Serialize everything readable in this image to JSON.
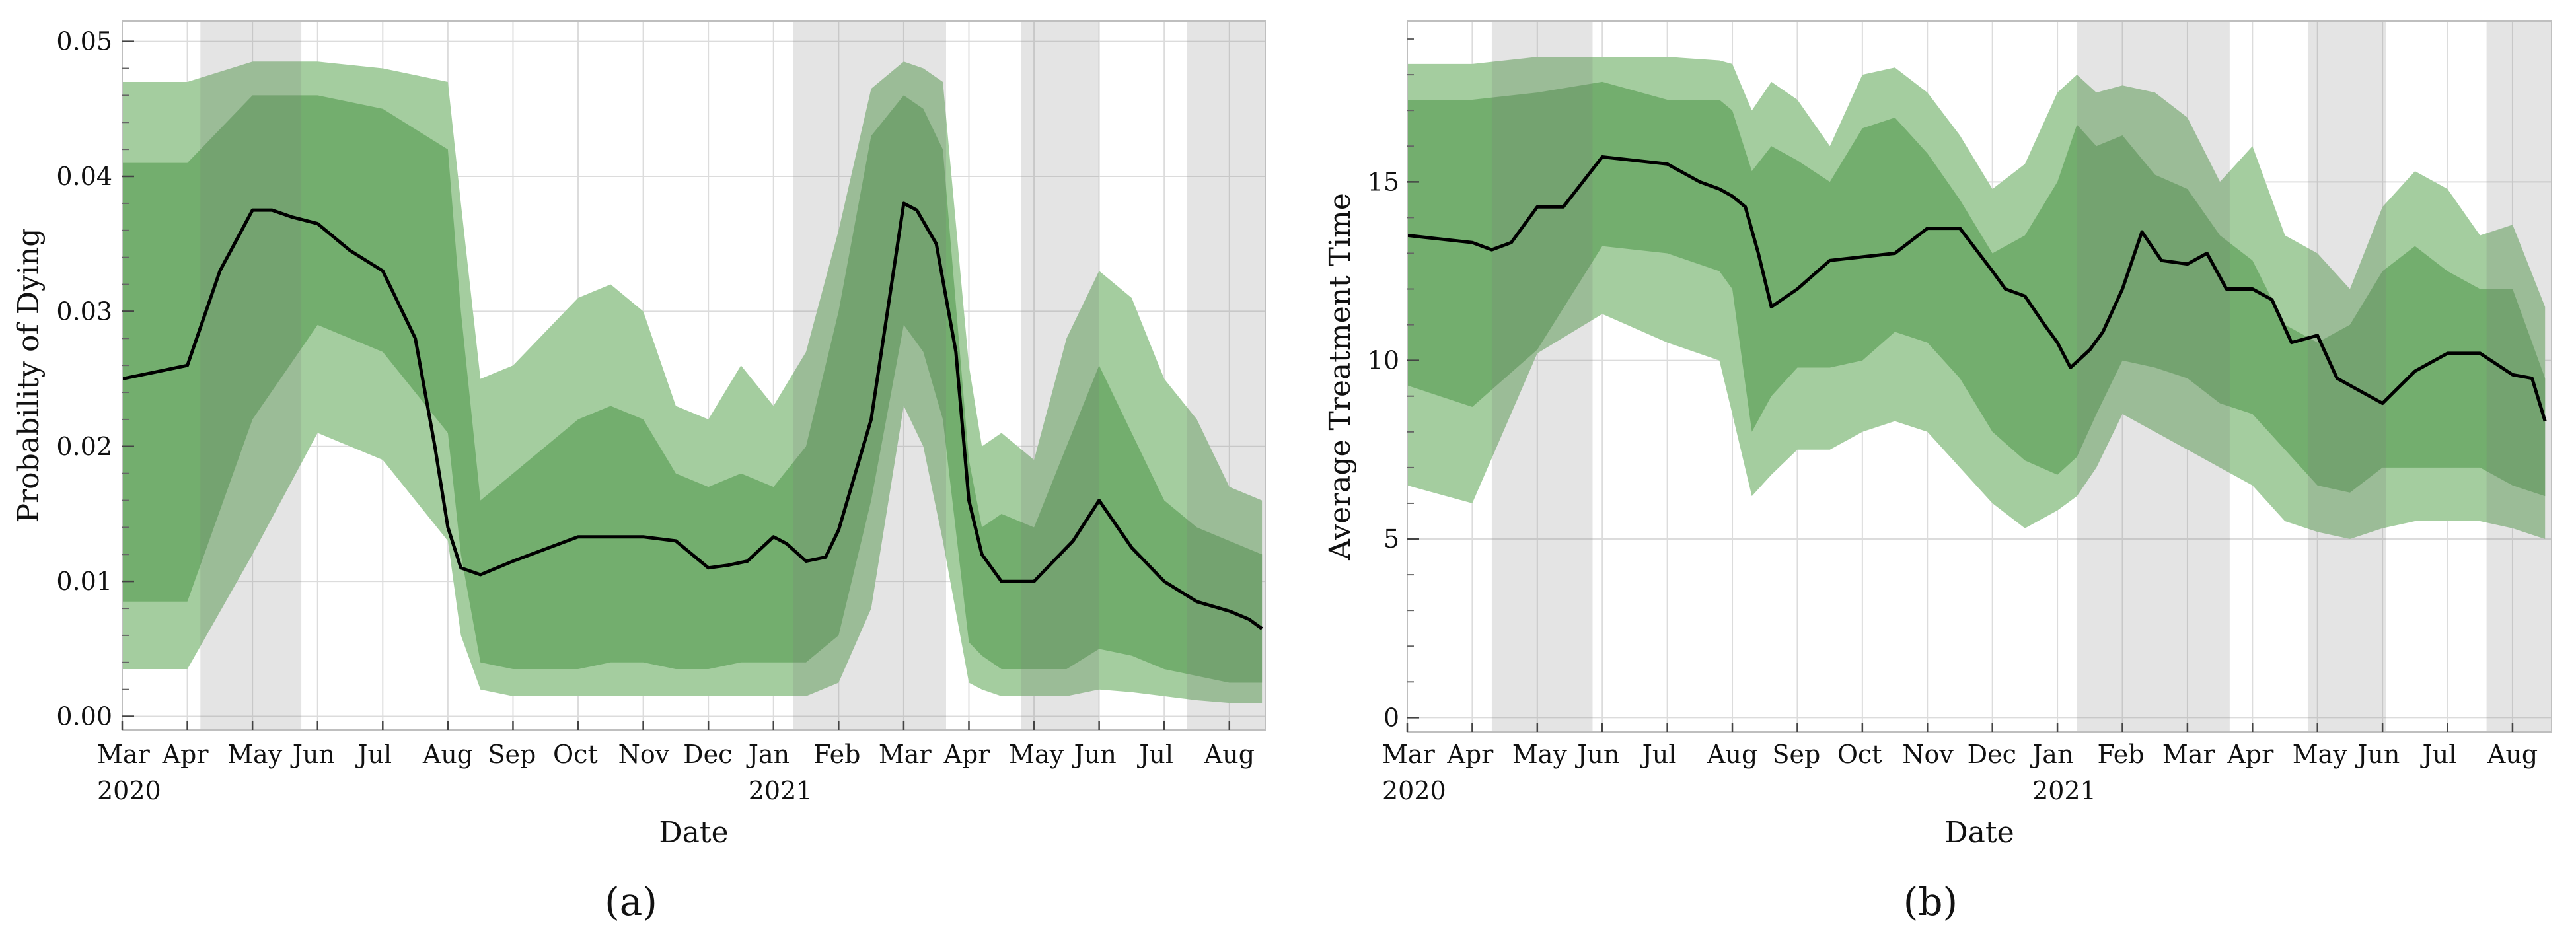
{
  "colors": {
    "shade": "#e5e5e5",
    "band_outer": "#a4cd9f",
    "band_inner": "#73ae6e",
    "median": "#000000",
    "grid": "#dcdcdc",
    "frame": "#bfbfbf"
  },
  "month_labels": [
    "Mar",
    "Apr",
    "May",
    "Jun",
    "Jul",
    "Aug",
    "Sep",
    "Oct",
    "Nov",
    "Dec",
    "Jan",
    "Feb",
    "Mar",
    "Apr",
    "May",
    "Jun",
    "Jul",
    "Aug"
  ],
  "year_labels": [
    "2020",
    "2021"
  ],
  "chart_data": [
    {
      "type": "area",
      "panel_label": "(a)",
      "xlabel": "Date",
      "ylabel": "Probability of Dying",
      "x_range_months": [
        0,
        17.55
      ],
      "ylim": [
        -0.001,
        0.0515
      ],
      "yticks": [
        0.0,
        0.01,
        0.02,
        0.03,
        0.04,
        0.05
      ],
      "ytick_labels": [
        "0.00",
        "0.01",
        "0.02",
        "0.03",
        "0.04",
        "0.05"
      ],
      "shaded_periods_months": [
        [
          1.2,
          2.75
        ],
        [
          10.3,
          12.65
        ],
        [
          13.8,
          15.0
        ],
        [
          16.35,
          17.55
        ]
      ],
      "series": [
        {
          "name": "outer_upper",
          "x": [
            0,
            1,
            2,
            3,
            4,
            5,
            5.2,
            5.5,
            6,
            7,
            7.5,
            8,
            8.5,
            9,
            9.5,
            10,
            10.5,
            11,
            11.5,
            12,
            12.3,
            12.6,
            13,
            13.2,
            13.5,
            14,
            14.5,
            15,
            15.5,
            16,
            16.5,
            17,
            17.5
          ],
          "y": [
            0.047,
            0.047,
            0.0485,
            0.0485,
            0.048,
            0.047,
            0.038,
            0.025,
            0.026,
            0.031,
            0.032,
            0.03,
            0.023,
            0.022,
            0.026,
            0.023,
            0.027,
            0.036,
            0.0465,
            0.0485,
            0.048,
            0.047,
            0.026,
            0.02,
            0.021,
            0.019,
            0.028,
            0.033,
            0.031,
            0.025,
            0.022,
            0.017,
            0.016
          ]
        },
        {
          "name": "inner_upper",
          "x": [
            0,
            1,
            2,
            3,
            4,
            5,
            5.2,
            5.5,
            6,
            7,
            7.5,
            8,
            8.5,
            9,
            9.5,
            10,
            10.5,
            11,
            11.5,
            12,
            12.3,
            12.6,
            13,
            13.2,
            13.5,
            14,
            14.5,
            15,
            15.5,
            16,
            16.5,
            17,
            17.5
          ],
          "y": [
            0.041,
            0.041,
            0.046,
            0.046,
            0.045,
            0.042,
            0.03,
            0.016,
            0.018,
            0.022,
            0.023,
            0.022,
            0.018,
            0.017,
            0.018,
            0.017,
            0.02,
            0.03,
            0.043,
            0.046,
            0.045,
            0.042,
            0.019,
            0.014,
            0.015,
            0.014,
            0.02,
            0.026,
            0.021,
            0.016,
            0.014,
            0.013,
            0.012
          ]
        },
        {
          "name": "median",
          "x": [
            0,
            0.5,
            1,
            1.5,
            2,
            2.3,
            2.6,
            3,
            3.5,
            4,
            4.5,
            4.8,
            5,
            5.2,
            5.5,
            6,
            7,
            7.5,
            8,
            8.5,
            9,
            9.3,
            9.6,
            10,
            10.2,
            10.5,
            10.8,
            11,
            11.5,
            12,
            12.2,
            12.5,
            12.8,
            13,
            13.2,
            13.5,
            14,
            14.3,
            14.6,
            15,
            15.5,
            16,
            16.5,
            17,
            17.3,
            17.5
          ],
          "y": [
            0.025,
            0.0255,
            0.026,
            0.033,
            0.0375,
            0.0375,
            0.037,
            0.0365,
            0.0345,
            0.033,
            0.028,
            0.02,
            0.014,
            0.011,
            0.0105,
            0.0115,
            0.0133,
            0.0133,
            0.0133,
            0.013,
            0.011,
            0.0112,
            0.0115,
            0.0133,
            0.0128,
            0.0115,
            0.0118,
            0.0138,
            0.022,
            0.038,
            0.0375,
            0.035,
            0.027,
            0.016,
            0.012,
            0.01,
            0.01,
            0.0115,
            0.013,
            0.016,
            0.0125,
            0.01,
            0.0085,
            0.0078,
            0.0072,
            0.0065
          ]
        },
        {
          "name": "inner_lower",
          "x": [
            0,
            1,
            2,
            3,
            4,
            5,
            5.2,
            5.5,
            6,
            7,
            7.5,
            8,
            8.5,
            9,
            9.5,
            10,
            10.5,
            11,
            11.5,
            12,
            12.3,
            12.6,
            13,
            13.2,
            13.5,
            14,
            14.5,
            15,
            15.5,
            16,
            16.5,
            17,
            17.5
          ],
          "y": [
            0.0085,
            0.0085,
            0.022,
            0.029,
            0.027,
            0.021,
            0.012,
            0.004,
            0.0035,
            0.0035,
            0.004,
            0.004,
            0.0035,
            0.0035,
            0.004,
            0.004,
            0.004,
            0.006,
            0.016,
            0.029,
            0.027,
            0.022,
            0.0055,
            0.0045,
            0.0035,
            0.0035,
            0.0035,
            0.005,
            0.0045,
            0.0035,
            0.003,
            0.0025,
            0.0025
          ]
        },
        {
          "name": "outer_lower",
          "x": [
            0,
            1,
            2,
            3,
            4,
            5,
            5.2,
            5.5,
            6,
            7,
            7.5,
            8,
            8.5,
            9,
            9.5,
            10,
            10.5,
            11,
            11.5,
            12,
            12.3,
            12.6,
            13,
            13.2,
            13.5,
            14,
            14.5,
            15,
            15.5,
            16,
            16.5,
            17,
            17.5
          ],
          "y": [
            0.0035,
            0.0035,
            0.012,
            0.021,
            0.019,
            0.013,
            0.006,
            0.002,
            0.0015,
            0.0015,
            0.0015,
            0.0015,
            0.0015,
            0.0015,
            0.0015,
            0.0015,
            0.0015,
            0.0025,
            0.008,
            0.023,
            0.02,
            0.013,
            0.0025,
            0.002,
            0.0015,
            0.0015,
            0.0015,
            0.002,
            0.0018,
            0.0015,
            0.0012,
            0.001,
            0.001
          ]
        }
      ]
    },
    {
      "type": "area",
      "panel_label": "(b)",
      "xlabel": "Date",
      "ylabel": "Average Treatment Time",
      "x_range_months": [
        0,
        17.6
      ],
      "ylim": [
        -0.4,
        19.5
      ],
      "yticks": [
        0,
        5,
        10,
        15
      ],
      "ytick_labels": [
        "0",
        "5",
        "10",
        "15"
      ],
      "shaded_periods_months": [
        [
          1.3,
          2.85
        ],
        [
          10.3,
          12.65
        ],
        [
          13.85,
          15.05
        ],
        [
          16.6,
          17.6
        ]
      ],
      "series": [
        {
          "name": "outer_upper",
          "x": [
            0,
            1,
            2,
            3,
            4,
            4.8,
            5,
            5.3,
            5.6,
            6,
            6.5,
            7,
            7.5,
            8,
            8.5,
            9,
            9.5,
            10,
            10.3,
            10.6,
            11,
            11.5,
            12,
            12.5,
            13,
            13.5,
            14,
            14.5,
            15,
            15.5,
            16,
            16.5,
            17,
            17.5
          ],
          "y": [
            18.3,
            18.3,
            18.5,
            18.5,
            18.5,
            18.4,
            18.3,
            17.0,
            17.8,
            17.3,
            16.0,
            18.0,
            18.2,
            17.5,
            16.3,
            14.8,
            15.5,
            17.5,
            18.0,
            17.5,
            17.7,
            17.5,
            16.8,
            15.0,
            16.0,
            13.5,
            13.0,
            12.0,
            14.3,
            15.3,
            14.8,
            13.5,
            13.8,
            11.5
          ]
        },
        {
          "name": "inner_upper",
          "x": [
            0,
            1,
            2,
            3,
            4,
            4.8,
            5,
            5.3,
            5.6,
            6,
            6.5,
            7,
            7.5,
            8,
            8.5,
            9,
            9.5,
            10,
            10.3,
            10.6,
            11,
            11.5,
            12,
            12.5,
            13,
            13.5,
            14,
            14.5,
            15,
            15.5,
            16,
            16.5,
            17,
            17.5
          ],
          "y": [
            17.3,
            17.3,
            17.5,
            17.8,
            17.3,
            17.3,
            17.0,
            15.3,
            16.0,
            15.6,
            15.0,
            16.5,
            16.8,
            15.8,
            14.5,
            13.0,
            13.5,
            15.0,
            16.6,
            16.0,
            16.3,
            15.2,
            14.8,
            13.5,
            12.8,
            11.0,
            10.5,
            11.0,
            12.5,
            13.2,
            12.5,
            12.0,
            12.0,
            9.5
          ]
        },
        {
          "name": "median",
          "x": [
            0,
            0.5,
            1,
            1.3,
            1.6,
            2,
            2.4,
            2.7,
            3,
            3.5,
            4,
            4.5,
            4.8,
            5.0,
            5.2,
            5.4,
            5.6,
            6,
            6.5,
            7,
            7.5,
            8,
            8.5,
            9,
            9.2,
            9.5,
            9.8,
            10,
            10.2,
            10.5,
            10.7,
            11,
            11.3,
            11.6,
            12,
            12.3,
            12.6,
            13,
            13.3,
            13.6,
            14,
            14.3,
            14.6,
            15,
            15.5,
            16,
            16.5,
            17,
            17.3,
            17.5
          ],
          "y": [
            13.5,
            13.4,
            13.3,
            13.1,
            13.3,
            14.3,
            14.3,
            15.0,
            15.7,
            15.6,
            15.5,
            15.0,
            14.8,
            14.6,
            14.3,
            13.0,
            11.5,
            12.0,
            12.8,
            12.9,
            13.0,
            13.7,
            13.7,
            12.5,
            12.0,
            11.8,
            11.0,
            10.5,
            9.8,
            10.3,
            10.8,
            12.0,
            13.6,
            12.8,
            12.7,
            13.0,
            12.0,
            12.0,
            11.7,
            10.5,
            10.7,
            9.5,
            9.2,
            8.8,
            9.7,
            10.2,
            10.2,
            9.6,
            9.5,
            8.3
          ]
        },
        {
          "name": "inner_lower",
          "x": [
            0,
            1,
            2,
            3,
            4,
            4.8,
            5,
            5.3,
            5.6,
            6,
            6.5,
            7,
            7.5,
            8,
            8.5,
            9,
            9.5,
            10,
            10.3,
            10.6,
            11,
            11.5,
            12,
            12.5,
            13,
            13.5,
            14,
            14.5,
            15,
            15.5,
            16,
            16.5,
            17,
            17.5
          ],
          "y": [
            9.3,
            8.7,
            10.3,
            13.2,
            13.0,
            12.5,
            12.0,
            8.0,
            9.0,
            9.8,
            9.8,
            10.0,
            10.8,
            10.5,
            9.5,
            8.0,
            7.2,
            6.8,
            7.3,
            8.5,
            10.0,
            9.8,
            9.5,
            8.8,
            8.5,
            7.5,
            6.5,
            6.3,
            7.0,
            7.0,
            7.0,
            7.0,
            6.5,
            6.2
          ]
        },
        {
          "name": "outer_lower",
          "x": [
            0,
            1,
            2,
            3,
            4,
            4.8,
            5,
            5.3,
            5.6,
            6,
            6.5,
            7,
            7.5,
            8,
            8.5,
            9,
            9.5,
            10,
            10.3,
            10.6,
            11,
            11.5,
            12,
            12.5,
            13,
            13.5,
            14,
            14.5,
            15,
            15.5,
            16,
            16.5,
            17,
            17.5
          ],
          "y": [
            6.5,
            6.0,
            10.2,
            11.3,
            10.5,
            10.0,
            8.5,
            6.2,
            6.8,
            7.5,
            7.5,
            8.0,
            8.3,
            8.0,
            7.0,
            6.0,
            5.3,
            5.8,
            6.2,
            7.0,
            8.5,
            8.0,
            7.5,
            7.0,
            6.5,
            5.5,
            5.2,
            5.0,
            5.3,
            5.5,
            5.5,
            5.5,
            5.3,
            5.0
          ]
        }
      ]
    }
  ]
}
